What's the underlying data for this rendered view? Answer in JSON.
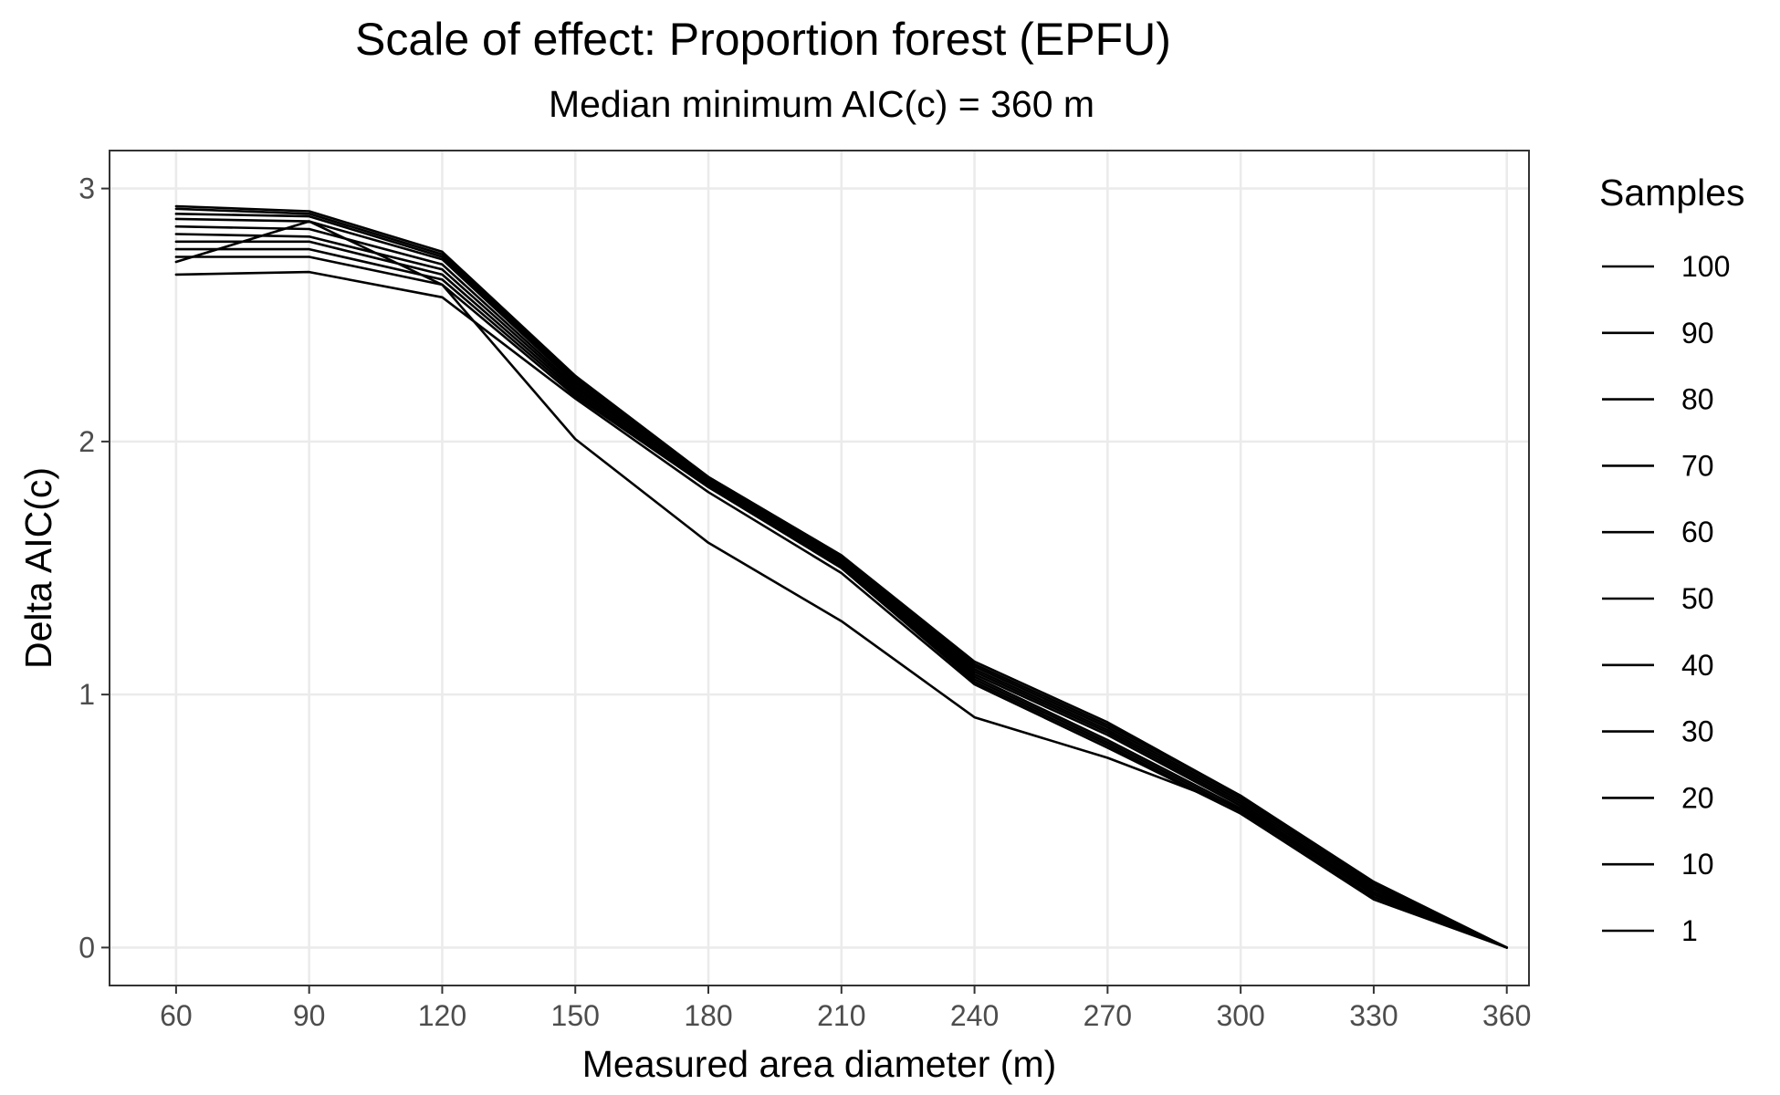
{
  "chart_data": {
    "type": "line",
    "title": "Scale of effect: Proportion forest (EPFU)",
    "subtitle": "Median minimum AIC(c) = 360 m",
    "xlabel": "Measured area diameter (m)",
    "ylabel": "Delta AIC(c)",
    "x": [
      60,
      90,
      120,
      150,
      180,
      210,
      240,
      270,
      300,
      330,
      360
    ],
    "x_tick_labels": [
      "60",
      "90",
      "120",
      "150",
      "180",
      "210",
      "240",
      "270",
      "300",
      "330",
      "360"
    ],
    "y_ticks": [
      0,
      1,
      2,
      3
    ],
    "y_tick_labels": [
      "0",
      "1",
      "2",
      "3"
    ],
    "xlim": [
      45,
      365
    ],
    "ylim": [
      -0.15,
      3.15
    ],
    "grid": true,
    "legend_title": "Samples",
    "legend_position": "right",
    "series_color": "#000000",
    "series": [
      {
        "name": "100",
        "values": [
          2.93,
          2.91,
          2.75,
          2.26,
          1.86,
          1.55,
          1.13,
          0.89,
          0.6,
          0.26,
          0
        ]
      },
      {
        "name": "90",
        "values": [
          2.92,
          2.9,
          2.74,
          2.25,
          1.86,
          1.55,
          1.12,
          0.88,
          0.6,
          0.25,
          0
        ]
      },
      {
        "name": "80",
        "values": [
          2.9,
          2.89,
          2.73,
          2.24,
          1.85,
          1.54,
          1.11,
          0.87,
          0.59,
          0.25,
          0
        ]
      },
      {
        "name": "70",
        "values": [
          2.88,
          2.87,
          2.72,
          2.23,
          1.85,
          1.54,
          1.1,
          0.86,
          0.58,
          0.24,
          0
        ]
      },
      {
        "name": "60",
        "values": [
          2.85,
          2.84,
          2.7,
          2.22,
          1.84,
          1.53,
          1.09,
          0.85,
          0.57,
          0.23,
          0
        ]
      },
      {
        "name": "50",
        "values": [
          2.82,
          2.81,
          2.68,
          2.21,
          1.84,
          1.53,
          1.08,
          0.84,
          0.56,
          0.22,
          0
        ]
      },
      {
        "name": "40",
        "values": [
          2.79,
          2.79,
          2.66,
          2.2,
          1.83,
          1.52,
          1.07,
          0.82,
          0.55,
          0.21,
          0
        ]
      },
      {
        "name": "30",
        "values": [
          2.76,
          2.76,
          2.64,
          2.19,
          1.82,
          1.51,
          1.06,
          0.81,
          0.54,
          0.21,
          0
        ]
      },
      {
        "name": "20",
        "values": [
          2.73,
          2.73,
          2.62,
          2.18,
          1.82,
          1.5,
          1.05,
          0.8,
          0.53,
          0.2,
          0
        ]
      },
      {
        "name": "10",
        "values": [
          2.66,
          2.67,
          2.57,
          2.17,
          1.8,
          1.48,
          1.04,
          0.79,
          0.53,
          0.19,
          0
        ]
      },
      {
        "name": "1",
        "values": [
          2.71,
          2.87,
          2.62,
          2.01,
          1.6,
          1.29,
          0.91,
          0.75,
          0.55,
          0.22,
          0
        ]
      }
    ]
  }
}
